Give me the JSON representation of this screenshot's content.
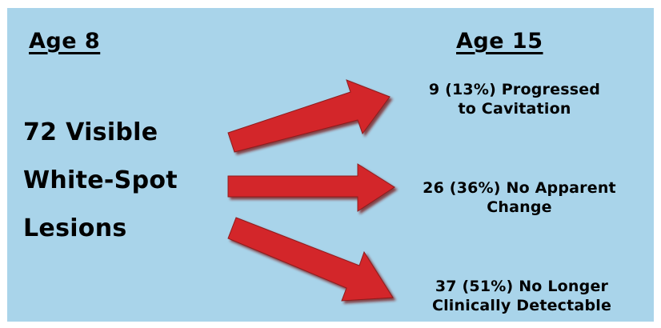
{
  "headers": {
    "left": "Age 8",
    "right": "Age 15"
  },
  "source": {
    "line1": "72 Visible",
    "line2": "White-Spot",
    "line3": "Lesions"
  },
  "outcomes": [
    {
      "line1": "9 (13%) Progressed",
      "line2": "to Cavitation"
    },
    {
      "line1": "26 (36%) No Apparent",
      "line2": "Change"
    },
    {
      "line1": "37 (51%) No Longer",
      "line2": "Clinically Detectable"
    }
  ],
  "colors": {
    "background": "#a9d4ea",
    "arrow": "#d3262b",
    "arrow_shadow": "#7a1518"
  },
  "icons": [
    "arrow-up-right-icon",
    "arrow-right-icon",
    "arrow-down-right-icon"
  ]
}
